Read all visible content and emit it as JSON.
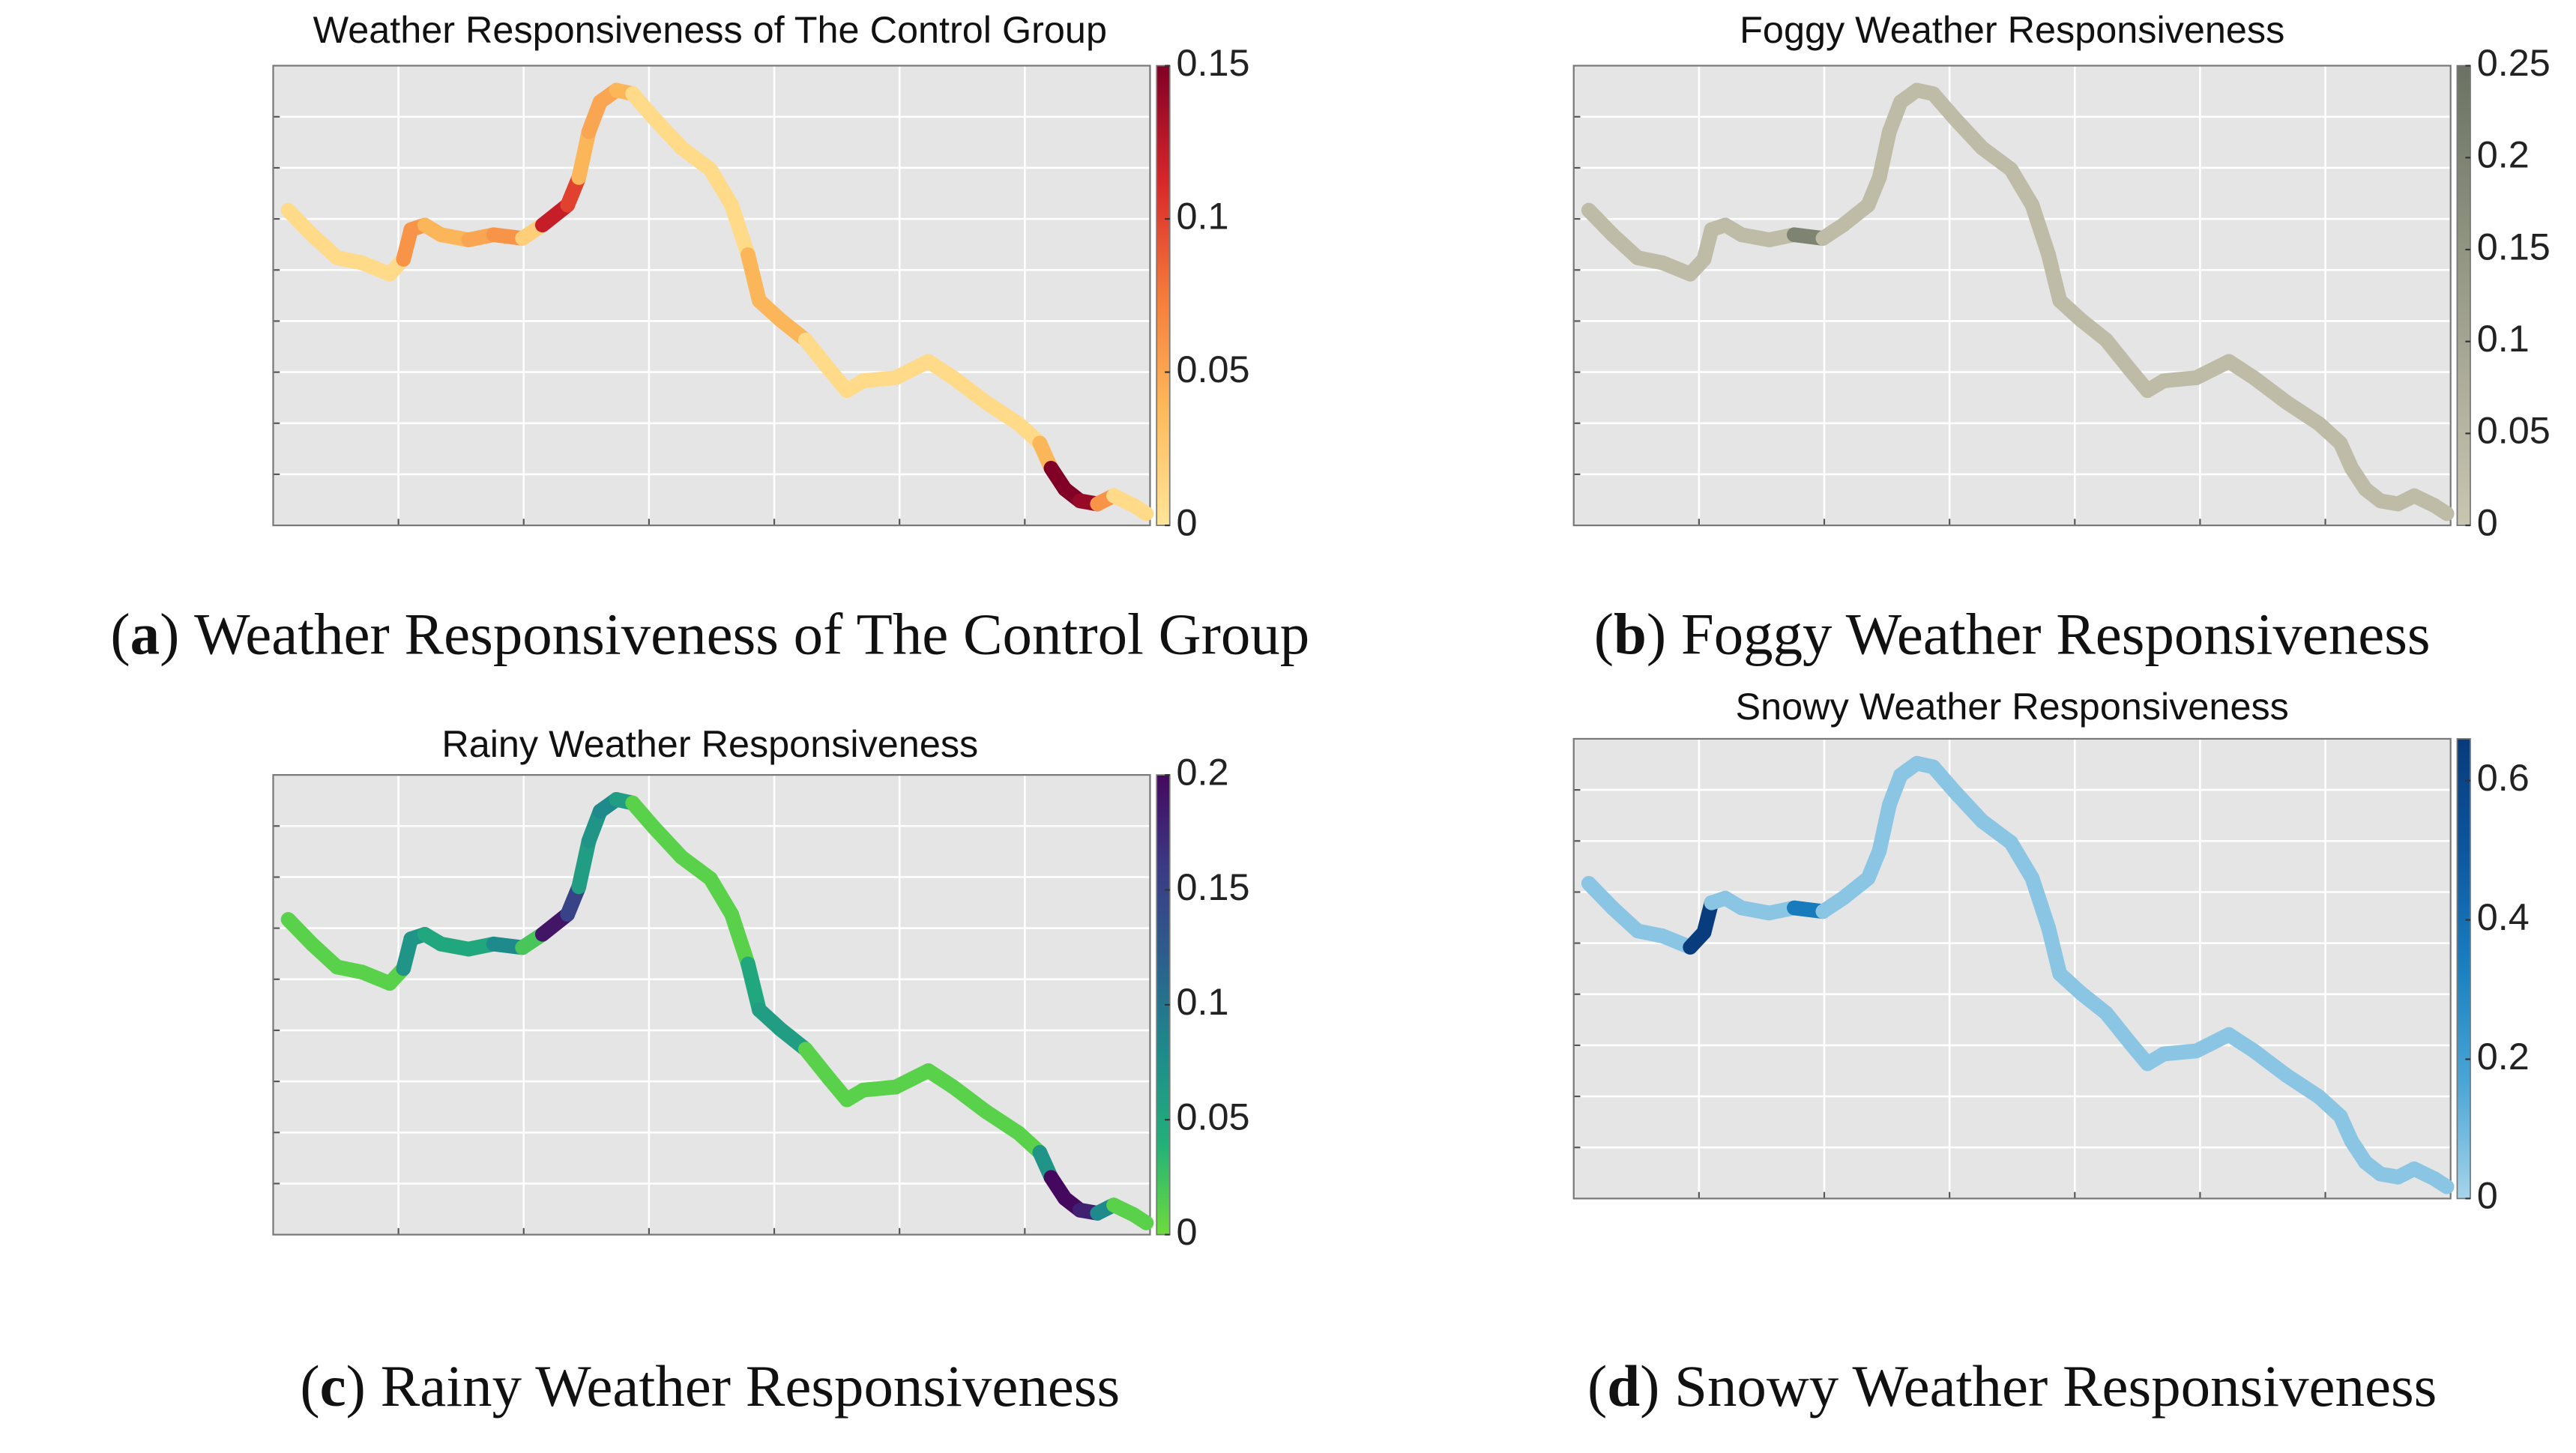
{
  "chart_data": [
    {
      "type": "line",
      "title": "Weather Responsiveness of The Control Group",
      "caption_label": "a",
      "caption": "Weather Responsiveness of The Control Group",
      "xlim": [
        0,
        7
      ],
      "ylim": [
        0,
        9
      ],
      "xticks": [
        1,
        2,
        3,
        4,
        5,
        6
      ],
      "yticks": [
        1,
        2,
        3,
        4,
        5,
        6,
        7,
        8
      ],
      "grid": true,
      "x": [
        0.12,
        0.31,
        0.51,
        0.71,
        0.93,
        1.04,
        1.1,
        1.21,
        1.34,
        1.56,
        1.76,
        1.99,
        2.15,
        2.35,
        2.44,
        2.52,
        2.61,
        2.74,
        2.87,
        3.04,
        3.26,
        3.49,
        3.66,
        3.79,
        3.88,
        4.05,
        4.25,
        4.44,
        4.58,
        4.71,
        4.97,
        5.1,
        5.23,
        5.43,
        5.69,
        5.95,
        6.12,
        6.21,
        6.32,
        6.44,
        6.58,
        6.71,
        6.87,
        6.97
      ],
      "y": [
        6.17,
        5.69,
        5.24,
        5.14,
        4.92,
        5.21,
        5.79,
        5.88,
        5.69,
        5.59,
        5.69,
        5.62,
        5.88,
        6.27,
        6.81,
        7.71,
        8.29,
        8.52,
        8.45,
        7.97,
        7.39,
        6.97,
        6.27,
        5.3,
        4.4,
        4.02,
        3.63,
        3.05,
        2.64,
        2.83,
        2.89,
        3.05,
        3.21,
        2.89,
        2.41,
        1.99,
        1.61,
        1.12,
        0.71,
        0.48,
        0.42,
        0.58,
        0.39,
        0.23
      ],
      "intensity": [
        0.01,
        0.01,
        0.01,
        0.01,
        0.01,
        0.06,
        0.06,
        0.04,
        0.04,
        0.05,
        0.06,
        0.02,
        0.12,
        0.1,
        0.04,
        0.05,
        0.05,
        0.04,
        0.01,
        0.01,
        0.01,
        0.01,
        0.01,
        0.04,
        0.04,
        0.04,
        0.01,
        0.01,
        0.01,
        0.01,
        0.01,
        0.01,
        0.01,
        0.01,
        0.01,
        0.01,
        0.04,
        0.15,
        0.15,
        0.14,
        0.06,
        0.01,
        0.01,
        0.01
      ],
      "clim": [
        0,
        0.15
      ],
      "cticks": [
        0,
        0.05,
        0.1,
        0.15
      ],
      "colormap": [
        "#ffe699",
        "#fdba5c",
        "#f57b3a",
        "#d7262a",
        "#800026"
      ]
    },
    {
      "type": "line",
      "title": "Foggy Weather Responsiveness",
      "caption_label": "b",
      "caption": "Foggy Weather Responsiveness",
      "xlim": [
        0,
        7
      ],
      "ylim": [
        0,
        9
      ],
      "xticks": [
        1,
        2,
        3,
        4,
        5,
        6
      ],
      "yticks": [
        1,
        2,
        3,
        4,
        5,
        6,
        7,
        8
      ],
      "grid": true,
      "x": [
        0.12,
        0.31,
        0.51,
        0.71,
        0.93,
        1.04,
        1.1,
        1.21,
        1.34,
        1.56,
        1.76,
        1.99,
        2.15,
        2.35,
        2.44,
        2.52,
        2.61,
        2.74,
        2.87,
        3.04,
        3.26,
        3.49,
        3.66,
        3.79,
        3.88,
        4.05,
        4.25,
        4.44,
        4.58,
        4.71,
        4.97,
        5.1,
        5.23,
        5.43,
        5.69,
        5.95,
        6.12,
        6.21,
        6.32,
        6.44,
        6.58,
        6.71,
        6.87,
        6.97
      ],
      "y": [
        6.17,
        5.69,
        5.24,
        5.14,
        4.92,
        5.21,
        5.79,
        5.88,
        5.69,
        5.59,
        5.69,
        5.62,
        5.88,
        6.27,
        6.81,
        7.71,
        8.29,
        8.52,
        8.45,
        7.97,
        7.39,
        6.97,
        6.27,
        5.3,
        4.4,
        4.02,
        3.63,
        3.05,
        2.64,
        2.83,
        2.89,
        3.05,
        3.21,
        2.89,
        2.41,
        1.99,
        1.61,
        1.12,
        0.71,
        0.48,
        0.42,
        0.58,
        0.39,
        0.23
      ],
      "intensity": [
        0.03,
        0.03,
        0.03,
        0.03,
        0.03,
        0.03,
        0.03,
        0.03,
        0.03,
        0.03,
        0.2,
        0.03,
        0.03,
        0.03,
        0.03,
        0.03,
        0.03,
        0.03,
        0.03,
        0.03,
        0.03,
        0.03,
        0.03,
        0.03,
        0.03,
        0.03,
        0.03,
        0.03,
        0.03,
        0.03,
        0.03,
        0.03,
        0.03,
        0.03,
        0.03,
        0.03,
        0.03,
        0.03,
        0.03,
        0.03,
        0.03,
        0.03,
        0.03,
        0.03
      ],
      "clim": [
        0,
        0.25
      ],
      "cticks": [
        0,
        0.05,
        0.1,
        0.15,
        0.2,
        0.25
      ],
      "colormap": [
        "#c9c6b0",
        "#aaab98",
        "#8a8f7c",
        "#6b7263"
      ]
    },
    {
      "type": "line",
      "title": "Rainy Weather Responsiveness",
      "caption_label": "c",
      "caption": "Rainy Weather Responsiveness",
      "xlim": [
        0,
        7
      ],
      "ylim": [
        0,
        9
      ],
      "xticks": [
        1,
        2,
        3,
        4,
        5,
        6
      ],
      "yticks": [
        1,
        2,
        3,
        4,
        5,
        6,
        7,
        8
      ],
      "grid": true,
      "x": [
        0.12,
        0.31,
        0.51,
        0.71,
        0.93,
        1.04,
        1.1,
        1.21,
        1.34,
        1.56,
        1.76,
        1.99,
        2.15,
        2.35,
        2.44,
        2.52,
        2.61,
        2.74,
        2.87,
        3.04,
        3.26,
        3.49,
        3.66,
        3.79,
        3.88,
        4.05,
        4.25,
        4.44,
        4.58,
        4.71,
        4.97,
        5.1,
        5.23,
        5.43,
        5.69,
        5.95,
        6.12,
        6.21,
        6.32,
        6.44,
        6.58,
        6.71,
        6.87,
        6.97
      ],
      "y": [
        6.17,
        5.69,
        5.24,
        5.14,
        4.92,
        5.21,
        5.79,
        5.88,
        5.69,
        5.59,
        5.69,
        5.62,
        5.88,
        6.27,
        6.81,
        7.71,
        8.29,
        8.52,
        8.45,
        7.97,
        7.39,
        6.97,
        6.27,
        5.3,
        4.4,
        4.02,
        3.63,
        3.05,
        2.64,
        2.83,
        2.89,
        3.05,
        3.21,
        2.89,
        2.41,
        1.99,
        1.61,
        1.12,
        0.71,
        0.48,
        0.42,
        0.58,
        0.39,
        0.23
      ],
      "intensity": [
        0.01,
        0.01,
        0.01,
        0.01,
        0.01,
        0.07,
        0.07,
        0.05,
        0.05,
        0.05,
        0.08,
        0.02,
        0.19,
        0.15,
        0.06,
        0.07,
        0.08,
        0.06,
        0.01,
        0.01,
        0.01,
        0.01,
        0.01,
        0.05,
        0.06,
        0.06,
        0.01,
        0.01,
        0.01,
        0.01,
        0.01,
        0.01,
        0.01,
        0.01,
        0.01,
        0.01,
        0.07,
        0.2,
        0.2,
        0.18,
        0.08,
        0.01,
        0.01,
        0.01
      ],
      "clim": [
        0,
        0.2
      ],
      "cticks": [
        0,
        0.05,
        0.1,
        0.15,
        0.2
      ],
      "colormap": [
        "#6ddc3a",
        "#22b07a",
        "#1e8a8b",
        "#2c5f8d",
        "#3b3a83",
        "#44085e"
      ]
    },
    {
      "type": "line",
      "title": "Snowy Weather Responsiveness",
      "caption_label": "d",
      "caption": "Snowy Weather Responsiveness",
      "xlim": [
        0,
        7
      ],
      "ylim": [
        0,
        9
      ],
      "xticks": [
        1,
        2,
        3,
        4,
        5,
        6
      ],
      "yticks": [
        1,
        2,
        3,
        4,
        5,
        6,
        7,
        8
      ],
      "grid": true,
      "x": [
        0.12,
        0.31,
        0.51,
        0.71,
        0.93,
        1.04,
        1.1,
        1.21,
        1.34,
        1.56,
        1.76,
        1.99,
        2.15,
        2.35,
        2.44,
        2.52,
        2.61,
        2.74,
        2.87,
        3.04,
        3.26,
        3.49,
        3.66,
        3.79,
        3.88,
        4.05,
        4.25,
        4.44,
        4.58,
        4.71,
        4.97,
        5.1,
        5.23,
        5.43,
        5.69,
        5.95,
        6.12,
        6.21,
        6.32,
        6.44,
        6.58,
        6.71,
        6.87,
        6.97
      ],
      "y": [
        6.17,
        5.69,
        5.24,
        5.14,
        4.92,
        5.21,
        5.79,
        5.88,
        5.69,
        5.59,
        5.69,
        5.62,
        5.88,
        6.27,
        6.81,
        7.71,
        8.29,
        8.52,
        8.45,
        7.97,
        7.39,
        6.97,
        6.27,
        5.3,
        4.4,
        4.02,
        3.63,
        3.05,
        2.64,
        2.83,
        2.89,
        3.05,
        3.21,
        2.89,
        2.41,
        1.99,
        1.61,
        1.12,
        0.71,
        0.48,
        0.42,
        0.58,
        0.39,
        0.23
      ],
      "intensity": [
        0.05,
        0.05,
        0.05,
        0.05,
        0.65,
        0.65,
        0.05,
        0.05,
        0.05,
        0.05,
        0.35,
        0.05,
        0.05,
        0.05,
        0.05,
        0.05,
        0.05,
        0.05,
        0.05,
        0.05,
        0.05,
        0.05,
        0.05,
        0.05,
        0.05,
        0.05,
        0.05,
        0.05,
        0.05,
        0.05,
        0.05,
        0.05,
        0.05,
        0.05,
        0.05,
        0.05,
        0.05,
        0.05,
        0.05,
        0.05,
        0.05,
        0.05,
        0.05,
        0.05
      ],
      "clim": [
        0,
        0.66
      ],
      "cticks": [
        0,
        0.2,
        0.4,
        0.6
      ],
      "colormap": [
        "#a6d4ea",
        "#4ba6d6",
        "#1a80c0",
        "#0d57a0",
        "#083a7a"
      ]
    }
  ]
}
